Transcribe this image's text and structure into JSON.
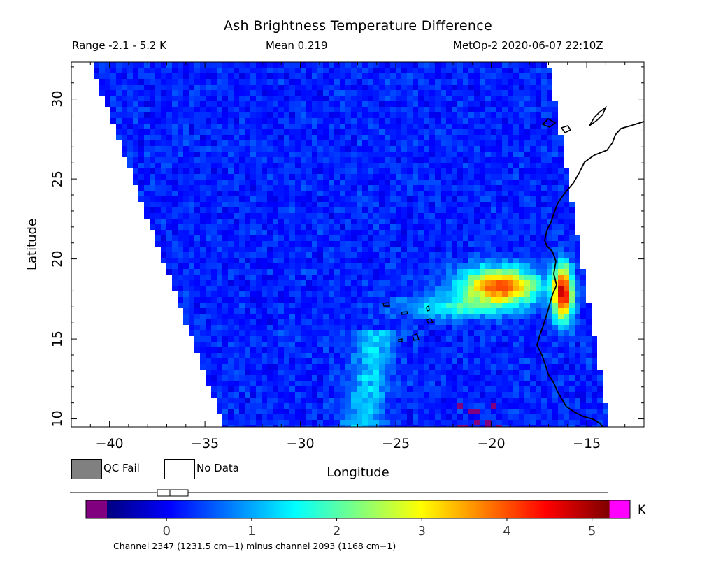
{
  "header": {
    "title": "Ash Brightness Temperature Difference",
    "range": "Range -2.1 - 5.2 K",
    "mean": "Mean 0.219",
    "satellite_time": "MetOp-2 2020-06-07 22:10Z"
  },
  "chart_data": {
    "type": "heatmap",
    "title": "Ash Brightness Temperature Difference",
    "xlabel": "Longitude",
    "ylabel": "Latitude",
    "xlim": [
      -42,
      -12
    ],
    "ylim": [
      9.5,
      32.3
    ],
    "x_ticks": [
      -40,
      -35,
      -30,
      -25,
      -20,
      -15
    ],
    "x_tick_labels": [
      "−40",
      "−35",
      "−30",
      "−25",
      "−20",
      "−15"
    ],
    "y_ticks": [
      10,
      15,
      20,
      25,
      30
    ],
    "y_tick_labels": [
      "10",
      "15",
      "20",
      "25",
      "30"
    ],
    "swath_corners": {
      "top_left": [
        -41.0,
        32.3
      ],
      "bottom_left": [
        -34.0,
        9.5
      ],
      "top_right": [
        -17.0,
        32.3
      ],
      "bottom_right": [
        -13.8,
        9.5
      ]
    },
    "background_value": 0.219,
    "features": [
      {
        "name": "dust plume core",
        "lon": -18.8,
        "lat": 17.7,
        "peak": 4.3
      },
      {
        "name": "coastal hot pixels",
        "lon": -15.3,
        "lat": 17.3,
        "peak": 5.0
      }
    ],
    "colorbar": {
      "min": -0.7,
      "max": 5.2,
      "ticks": [
        0,
        1,
        2,
        3,
        4,
        5
      ],
      "tick_labels": [
        "0",
        "1",
        "2",
        "3",
        "4",
        "5"
      ],
      "unit": "K",
      "underflow_color": "#800080",
      "overflow_color": "#ff00ff",
      "caption": "Channel 2347 (1231.5 cm−1) minus channel 2093 (1168 cm−1)"
    }
  },
  "legend": {
    "qc_fail_label": "QC Fail",
    "qc_fail_color": "#808080",
    "no_data_label": "No Data",
    "no_data_color": "#ffffff"
  }
}
